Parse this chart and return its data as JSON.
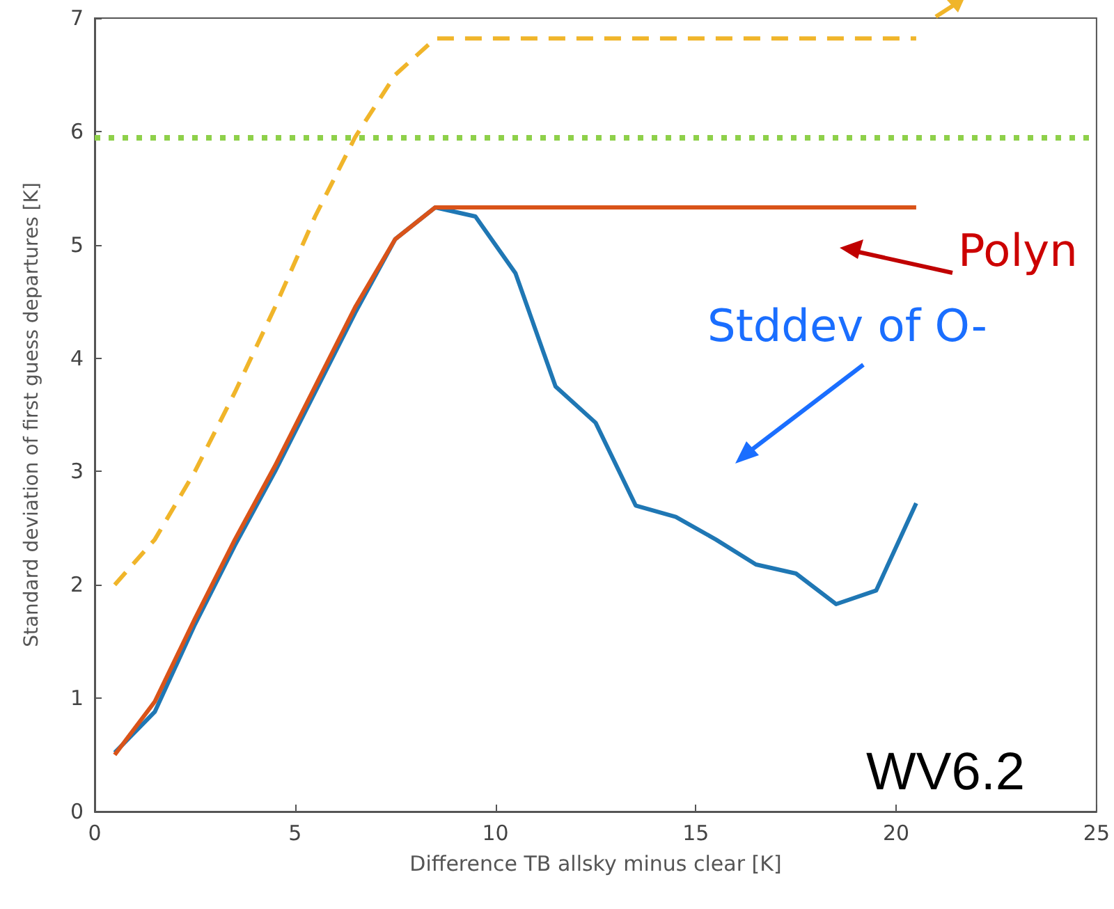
{
  "chart_data": {
    "type": "line",
    "xlabel": "Difference TB allsky minus clear [K]",
    "ylabel": "Standard deviation of first guess departures [K]",
    "xlim": [
      0,
      25
    ],
    "xticks": [
      0,
      5,
      10,
      15,
      20,
      25
    ],
    "ylim": [
      0,
      7
    ],
    "yticks": [
      0,
      1,
      2,
      3,
      4,
      5,
      6,
      7
    ],
    "grid": false,
    "marker": "none",
    "series": [
      {
        "color": "#f0b52a",
        "line_style": "dashed",
        "x": [
          0.5,
          1.5,
          2.5,
          3.5,
          4.5,
          5.5,
          6.5,
          7.5,
          8.5,
          20.5
        ],
        "values": [
          2.0,
          2.4,
          3.0,
          3.7,
          4.45,
          5.25,
          5.95,
          6.5,
          6.82,
          6.82
        ]
      },
      {
        "color": "#1f77b4",
        "line_style": "solid",
        "x": [
          0.5,
          1.5,
          2.5,
          3.5,
          4.5,
          5.5,
          6.5,
          7.5,
          8.5,
          9.5,
          10.5,
          11.5,
          12.5,
          13.5,
          14.5,
          15.5,
          16.5,
          17.5,
          18.5,
          19.5,
          20.5
        ],
        "values": [
          0.52,
          0.88,
          1.65,
          2.35,
          3.0,
          3.7,
          4.4,
          5.05,
          5.33,
          5.25,
          4.75,
          3.75,
          3.43,
          2.7,
          2.6,
          2.4,
          2.18,
          2.1,
          1.83,
          1.95,
          2.72
        ]
      },
      {
        "color": "#d95319",
        "line_style": "solid",
        "x": [
          0.5,
          1.5,
          2.5,
          3.5,
          4.5,
          5.5,
          6.5,
          7.5,
          8.5,
          20.5
        ],
        "values": [
          0.5,
          0.97,
          1.7,
          2.4,
          3.05,
          3.75,
          4.45,
          5.05,
          5.33,
          5.33
        ]
      }
    ],
    "ref_lines": [
      {
        "axis": "y",
        "value": 5.95,
        "color": "#8ed04a",
        "line_style": "dotted"
      }
    ],
    "annotations": [
      "Polyn",
      "Stddev of O-",
      "WV6.2"
    ]
  }
}
